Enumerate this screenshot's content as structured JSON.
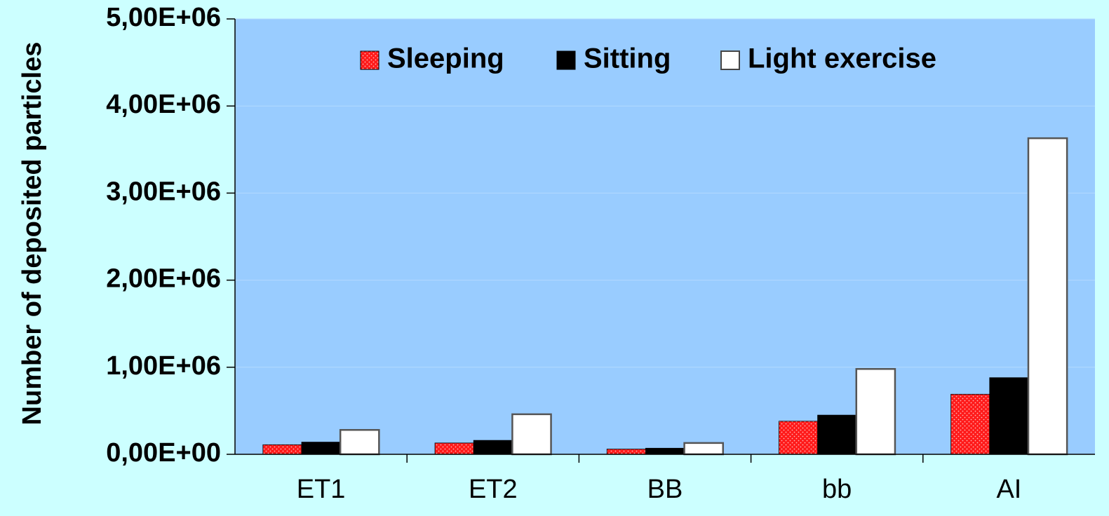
{
  "chart_data": {
    "type": "bar",
    "title": "",
    "xlabel": "",
    "ylabel": "Number of deposited particles",
    "categories": [
      "ET1",
      "ET2",
      "BB",
      "bb",
      "AI"
    ],
    "series": [
      {
        "name": "Sleeping",
        "values": [
          110000,
          130000,
          60000,
          380000,
          690000
        ],
        "color": "#ff2020",
        "pattern": "dotted"
      },
      {
        "name": "Sitting",
        "values": [
          140000,
          160000,
          70000,
          450000,
          880000
        ],
        "color": "#000000",
        "pattern": "solid"
      },
      {
        "name": "Light exercise",
        "values": [
          280000,
          460000,
          130000,
          980000,
          3630000
        ],
        "color": "#ffffff",
        "pattern": "solid"
      }
    ],
    "ylim": [
      0,
      5000000
    ],
    "yticks": [
      0,
      1000000,
      2000000,
      3000000,
      4000000,
      5000000
    ],
    "ytick_labels": [
      "0,00E+00",
      "1,00E+06",
      "2,00E+06",
      "3,00E+06",
      "4,00E+06",
      "5,00E+06"
    ],
    "grid": true,
    "legend_position": "top-center",
    "plot_background": "#99ccff",
    "page_background": "#ccffff"
  }
}
